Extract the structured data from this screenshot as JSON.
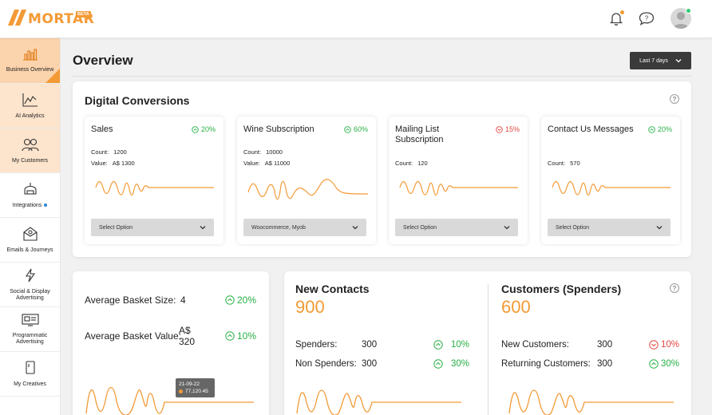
{
  "brand": {
    "name": "MORTAR",
    "badge": "BETA",
    "color": "#f39a35"
  },
  "topbar": {
    "icons": [
      "bell-icon",
      "chat-help-icon",
      "user-avatar"
    ]
  },
  "sidebar": {
    "items": [
      {
        "label": "Business Overview",
        "icon": "bar-chart-icon",
        "state": "active"
      },
      {
        "label": "AI Analytics",
        "icon": "line-chart-icon",
        "state": "highlight"
      },
      {
        "label": "My Customers",
        "icon": "people-icon",
        "state": "highlight"
      },
      {
        "label": "Integrations",
        "icon": "plug-icon",
        "state": "normal"
      },
      {
        "label": "Emails & Journeys",
        "icon": "envelope-icon",
        "state": "normal"
      },
      {
        "label": "Social & Display Advertising",
        "icon": "bolt-icon",
        "state": "normal"
      },
      {
        "label": "Programmatic Advertising",
        "icon": "monitor-icon",
        "state": "normal"
      },
      {
        "label": "My Creatives",
        "icon": "file-icon",
        "state": "normal"
      }
    ]
  },
  "page": {
    "title": "Overview",
    "range_label": "Last 7 days"
  },
  "digital_conversions": {
    "title": "Digital Conversions",
    "cards": [
      {
        "title": "Sales",
        "pct": "20%",
        "trend": "up",
        "count_label": "Count:",
        "count": "1200",
        "value_label": "Value:",
        "value": "A$ 1300",
        "select": "Select Option"
      },
      {
        "title": "Wine Subscription",
        "pct": "60%",
        "trend": "up",
        "count_label": "Count:",
        "count": "10000",
        "value_label": "Value:",
        "value": "A$ 11000",
        "select": "Woocommerce, Myob"
      },
      {
        "title": "Mailing List Subscription",
        "pct": "15%",
        "trend": "down",
        "count_label": "Count:",
        "count": "120",
        "select": "Select Option"
      },
      {
        "title": "Contact Us Messages",
        "pct": "20%",
        "trend": "up",
        "count_label": "Count:",
        "count": "570",
        "select": "Select Option"
      }
    ]
  },
  "basket": {
    "size_label": "Average Basket Size:",
    "size_value": "4",
    "size_pct": "20%",
    "value_label": "Average Basket Value:",
    "value_value": "A$ 320",
    "value_pct": "10%",
    "tooltip": {
      "date": "21-09-22",
      "value": "77,120.45"
    }
  },
  "contacts": {
    "title": "New Contacts",
    "total": "900",
    "rows": [
      {
        "label": "Spenders:",
        "value": "300",
        "pct": "10%",
        "trend": "up"
      },
      {
        "label": "Non Spenders:",
        "value": "300",
        "pct": "30%",
        "trend": "up"
      }
    ]
  },
  "customers": {
    "title": "Customers (Spenders)",
    "total": "600",
    "rows": [
      {
        "label": "New Customers:",
        "value": "300",
        "pct": "10%",
        "trend": "down"
      },
      {
        "label": "Returning Customers:",
        "value": "300",
        "pct": "30%",
        "trend": "up"
      }
    ]
  },
  "colors": {
    "accent": "#f39a35",
    "up": "#27b045",
    "down": "#e0463f"
  }
}
